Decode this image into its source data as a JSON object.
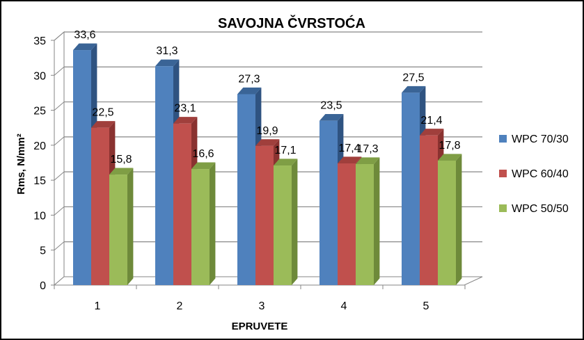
{
  "chart_data": {
    "type": "bar",
    "title": "SAVOJNA ČVRSTOĆA",
    "xlabel": "EPRUVETE",
    "ylabel": "Rms, N/mm²",
    "categories": [
      "1",
      "2",
      "3",
      "4",
      "5"
    ],
    "ylim": [
      0,
      35
    ],
    "yticks": [
      0,
      5,
      10,
      15,
      20,
      25,
      30,
      35
    ],
    "grid": true,
    "legend_position": "right",
    "series": [
      {
        "name": "WPC 70/30",
        "values": [
          33.6,
          31.3,
          27.3,
          23.5,
          27.5
        ],
        "labels": [
          "33,6",
          "31,3",
          "27,3",
          "23,5",
          "27,5"
        ]
      },
      {
        "name": "WPC 60/40",
        "values": [
          22.5,
          23.1,
          19.9,
          17.4,
          21.4
        ],
        "labels": [
          "22,5",
          "23,1",
          "19,9",
          "17,4",
          "21,4"
        ]
      },
      {
        "name": "WPC 50/50",
        "values": [
          15.8,
          16.6,
          17.1,
          17.3,
          17.8
        ],
        "labels": [
          "15,8",
          "16,6",
          "17,1",
          "17,3",
          "17,8"
        ]
      }
    ]
  },
  "colors": {
    "series_front": [
      "#4F81BD",
      "#C0504D",
      "#9BBB59"
    ],
    "series_side": [
      "#2F5381",
      "#8A3230",
      "#6E8A3A"
    ],
    "series_top": [
      "#3A6496",
      "#A03F3C",
      "#7F9E45"
    ]
  }
}
